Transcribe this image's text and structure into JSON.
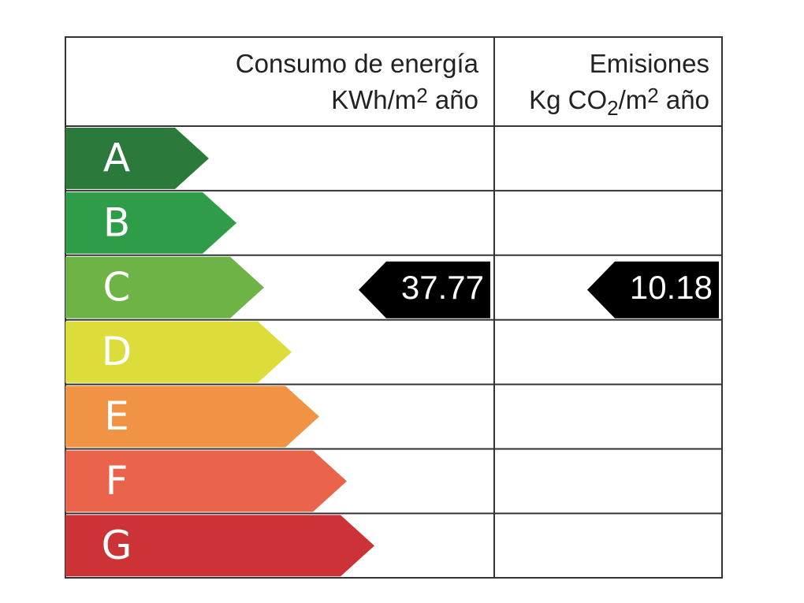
{
  "header": {
    "consumption": {
      "title": "Consumo de energía",
      "unit": [
        "KWh/m",
        "2",
        " año"
      ]
    },
    "emissions": {
      "title": "Emisiones",
      "unit": [
        "Kg CO",
        "2",
        "/m",
        "2",
        " año"
      ]
    }
  },
  "ratings": [
    {
      "letter": "A",
      "color": "#2b7a3c"
    },
    {
      "letter": "B",
      "color": "#2f9c47"
    },
    {
      "letter": "C",
      "color": "#6db345"
    },
    {
      "letter": "D",
      "color": "#dcdc3b"
    },
    {
      "letter": "E",
      "color": "#f09344"
    },
    {
      "letter": "F",
      "color": "#e9644b"
    },
    {
      "letter": "G",
      "color": "#cb3337"
    }
  ],
  "consumption": {
    "rating": "C",
    "value": 37.77
  },
  "emissions": {
    "rating": "C",
    "value": 10.18
  }
}
